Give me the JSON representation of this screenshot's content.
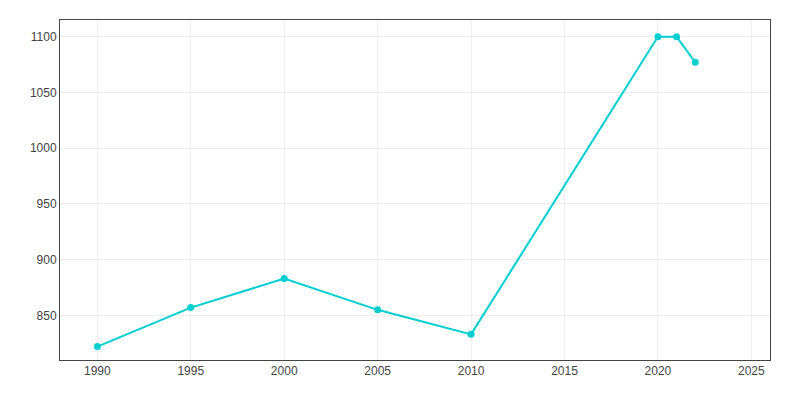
{
  "chart_data": {
    "type": "line",
    "x": [
      1990,
      1995,
      2000,
      2005,
      2010,
      2020,
      2021,
      2022
    ],
    "values": [
      822,
      857,
      883,
      855,
      833,
      1100,
      1100,
      1077
    ],
    "color": "#00CED1",
    "marker": "circle",
    "xlim": [
      1988,
      2026
    ],
    "xticks": [
      1990,
      1995,
      2000,
      2005,
      2010,
      2015,
      2020,
      2025
    ],
    "ylim": [
      810,
      1115
    ],
    "yticks": [
      850,
      900,
      950,
      1000,
      1050,
      1100
    ],
    "grid": true
  }
}
